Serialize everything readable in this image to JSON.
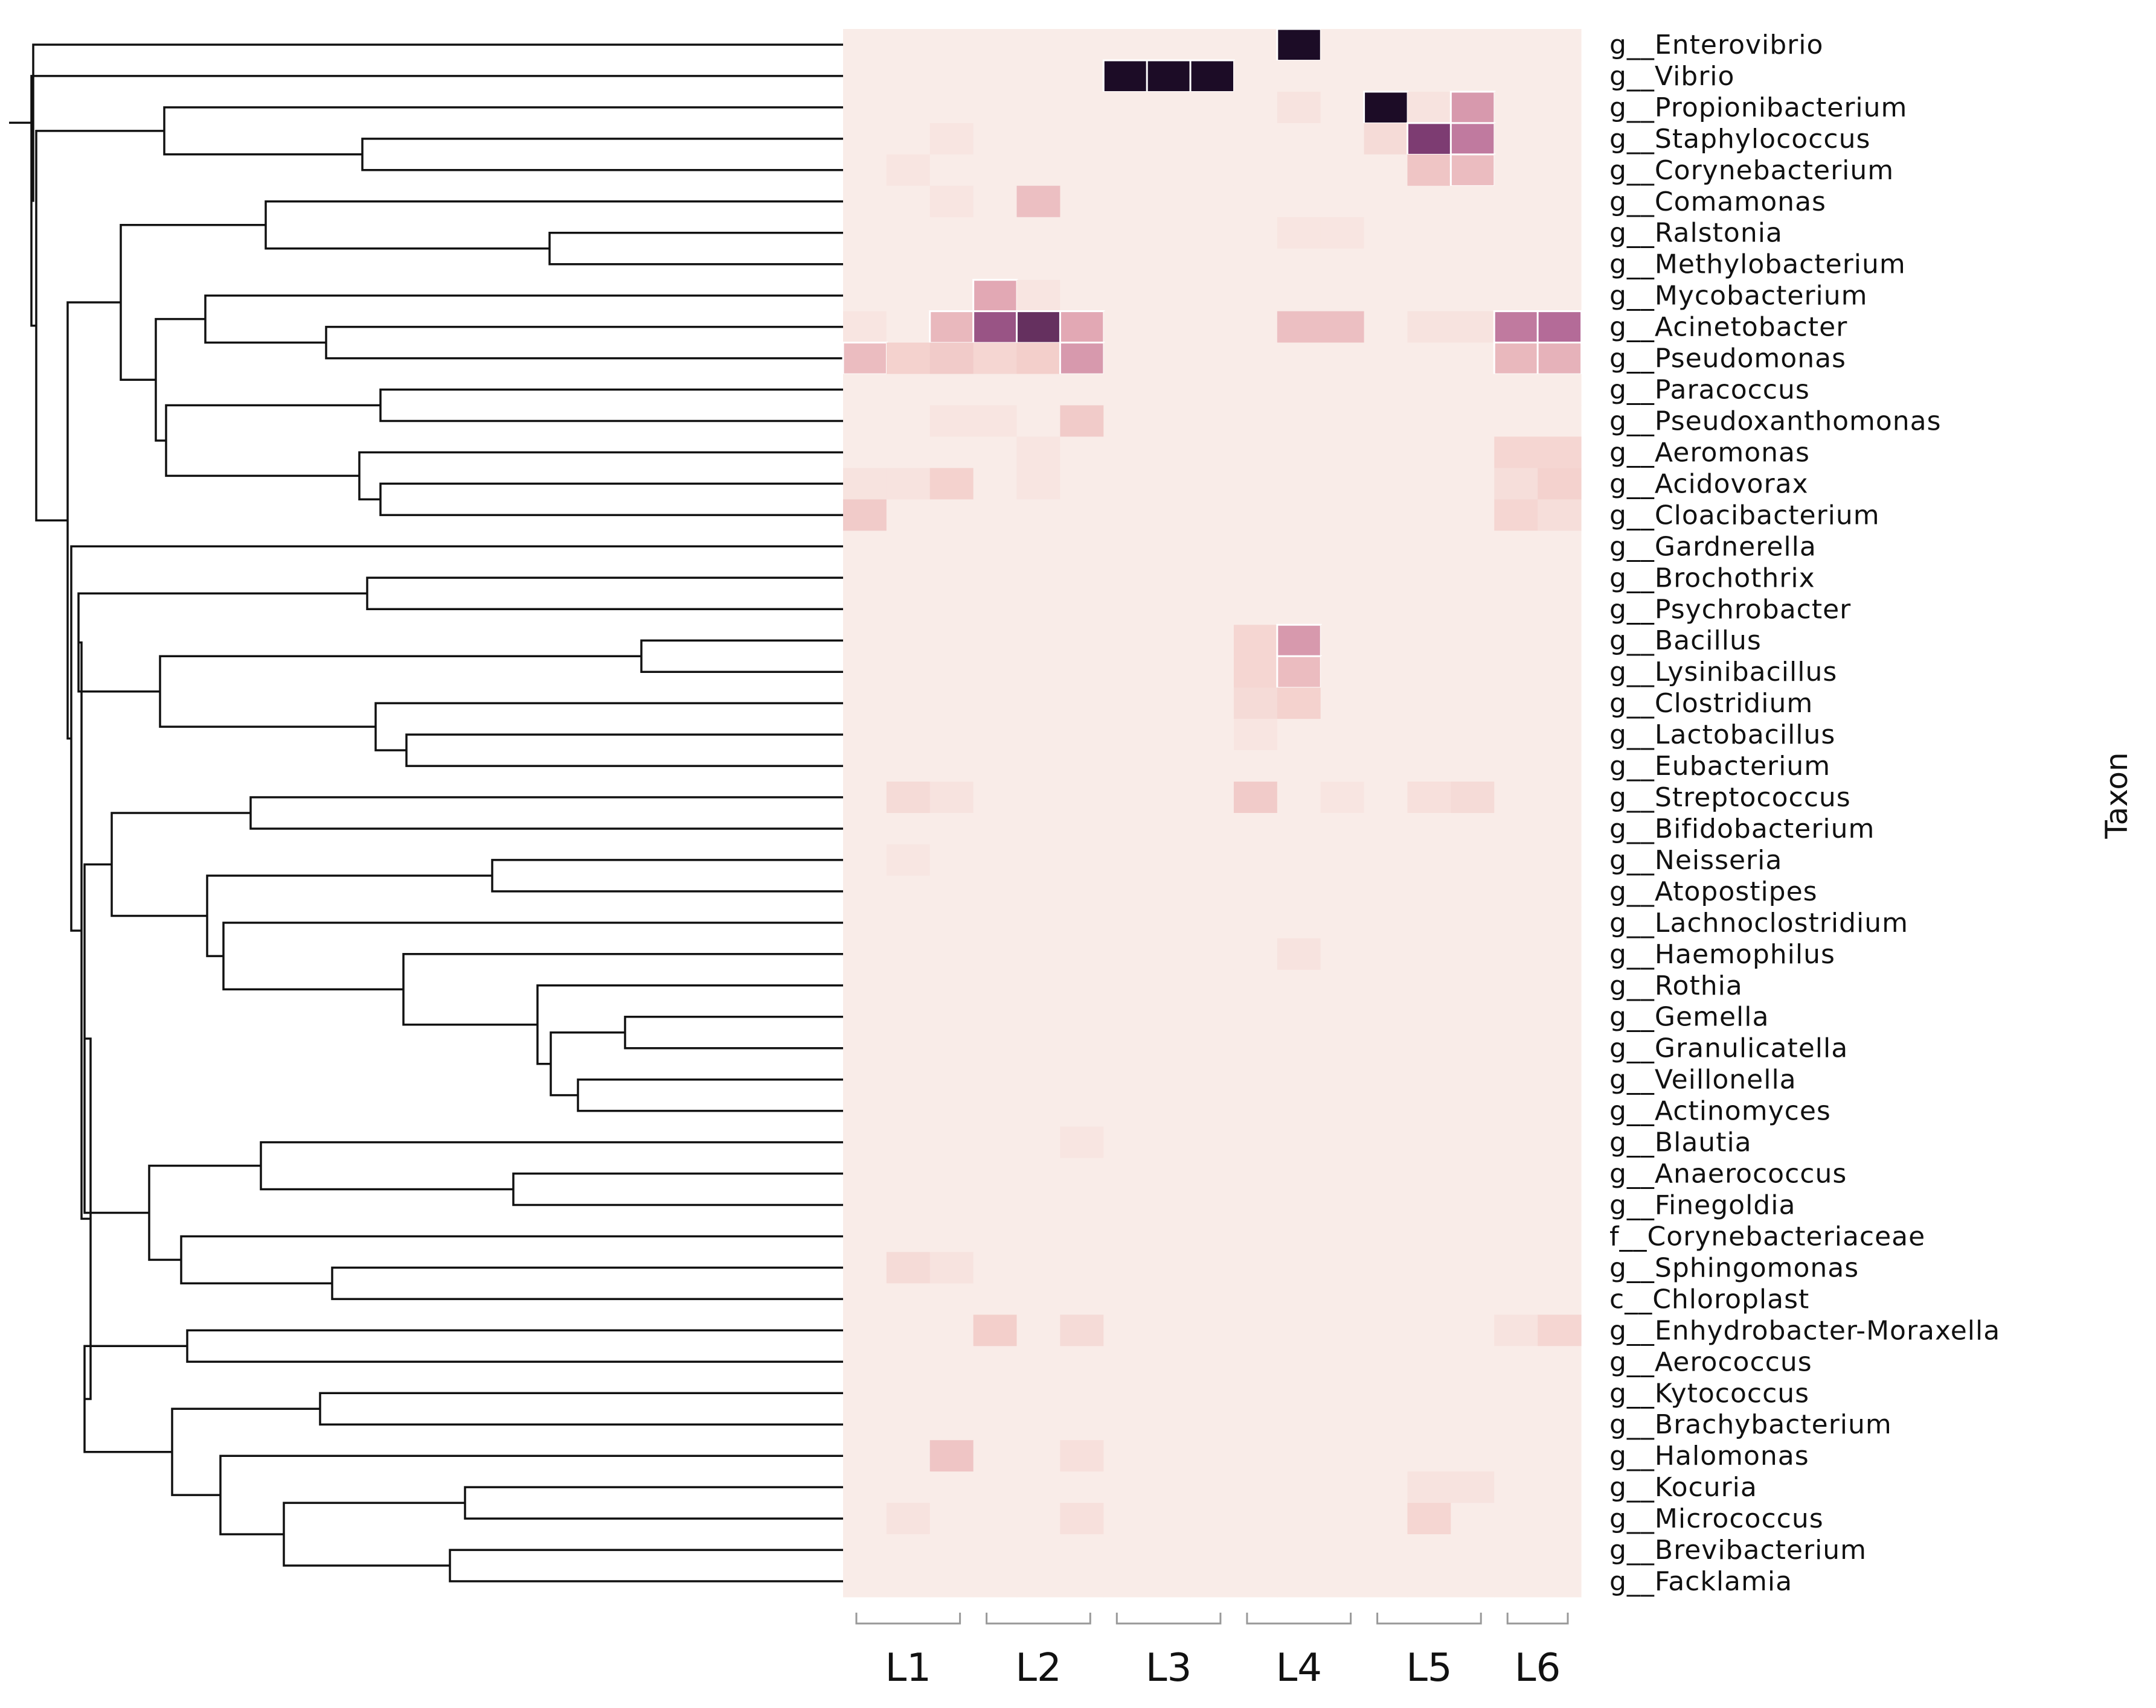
{
  "chart_data": {
    "type": "heatmap",
    "title": "",
    "xlabel": "",
    "ylabel": "Taxon",
    "colorscale": [
      "#f9ece8",
      "#f3cfcb",
      "#e2a8b4",
      "#b46b98",
      "#7d3c72",
      "#1c0c26"
    ],
    "value_range": [
      0,
      1
    ],
    "groups": [
      "L1",
      "L2",
      "L3",
      "L4",
      "L5",
      "L6"
    ],
    "group_column_counts": [
      3,
      3,
      3,
      3,
      3,
      2
    ],
    "dendrogram": "hierarchical clustering of taxa",
    "taxa": [
      "g__Enterovibrio",
      "g__Vibrio",
      "g__Propionibacterium",
      "g__Staphylococcus",
      "g__Corynebacterium",
      "g__Comamonas",
      "g__Ralstonia",
      "g__Methylobacterium",
      "g__Mycobacterium",
      "g__Acinetobacter",
      "g__Pseudomonas",
      "g__Paracoccus",
      "g__Pseudoxanthomonas",
      "g__Aeromonas",
      "g__Acidovorax",
      "g__Cloacibacterium",
      "g__Gardnerella",
      "g__Brochothrix",
      "g__Psychrobacter",
      "g__Bacillus",
      "g__Lysinibacillus",
      "g__Clostridium",
      "g__Lactobacillus",
      "g__Eubacterium",
      "g__Streptococcus",
      "g__Bifidobacterium",
      "g__Neisseria",
      "g__Atopostipes",
      "g__Lachnoclostridium",
      "g__Haemophilus",
      "g__Rothia",
      "g__Gemella",
      "g__Granulicatella",
      "g__Veillonella",
      "g__Actinomyces",
      "g__Blautia",
      "g__Anaerococcus",
      "g__Finegoldia",
      "f__Corynebacteriaceae",
      "g__Sphingomonas",
      "c__Chloroplast",
      "g__Enhydrobacter-Moraxella",
      "g__Aerococcus",
      "g__Kytococcus",
      "g__Brachybacterium",
      "g__Halomonas",
      "g__Kocuria",
      "g__Micrococcus",
      "g__Brevibacterium",
      "g__Facklamia"
    ],
    "cells": [
      {
        "taxon": 0,
        "sample": 10,
        "value": 1.0
      },
      {
        "taxon": 1,
        "sample": 6,
        "value": 1.0
      },
      {
        "taxon": 1,
        "sample": 7,
        "value": 1.0
      },
      {
        "taxon": 1,
        "sample": 8,
        "value": 1.0
      },
      {
        "taxon": 2,
        "sample": 10,
        "value": 0.06
      },
      {
        "taxon": 2,
        "sample": 12,
        "value": 1.0
      },
      {
        "taxon": 2,
        "sample": 13,
        "value": 0.06
      },
      {
        "taxon": 2,
        "sample": 14,
        "value": 0.45
      },
      {
        "taxon": 3,
        "sample": 2,
        "value": 0.05
      },
      {
        "taxon": 3,
        "sample": 12,
        "value": 0.12
      },
      {
        "taxon": 3,
        "sample": 13,
        "value": 0.8
      },
      {
        "taxon": 3,
        "sample": 14,
        "value": 0.55
      },
      {
        "taxon": 4,
        "sample": 1,
        "value": 0.05
      },
      {
        "taxon": 4,
        "sample": 13,
        "value": 0.25
      },
      {
        "taxon": 4,
        "sample": 14,
        "value": 0.3
      },
      {
        "taxon": 5,
        "sample": 2,
        "value": 0.05
      },
      {
        "taxon": 5,
        "sample": 4,
        "value": 0.28
      },
      {
        "taxon": 6,
        "sample": 10,
        "value": 0.05
      },
      {
        "taxon": 6,
        "sample": 11,
        "value": 0.05
      },
      {
        "taxon": 8,
        "sample": 3,
        "value": 0.4
      },
      {
        "taxon": 8,
        "sample": 4,
        "value": 0.05
      },
      {
        "taxon": 9,
        "sample": 0,
        "value": 0.05
      },
      {
        "taxon": 9,
        "sample": 2,
        "value": 0.32
      },
      {
        "taxon": 9,
        "sample": 3,
        "value": 0.7
      },
      {
        "taxon": 9,
        "sample": 4,
        "value": 0.85
      },
      {
        "taxon": 9,
        "sample": 5,
        "value": 0.4
      },
      {
        "taxon": 9,
        "sample": 10,
        "value": 0.28
      },
      {
        "taxon": 9,
        "sample": 11,
        "value": 0.28
      },
      {
        "taxon": 9,
        "sample": 13,
        "value": 0.06
      },
      {
        "taxon": 9,
        "sample": 14,
        "value": 0.06
      },
      {
        "taxon": 9,
        "sample": 15,
        "value": 0.55
      },
      {
        "taxon": 9,
        "sample": 16,
        "value": 0.6
      },
      {
        "taxon": 10,
        "sample": 0,
        "value": 0.3
      },
      {
        "taxon": 10,
        "sample": 1,
        "value": 0.18
      },
      {
        "taxon": 10,
        "sample": 2,
        "value": 0.22
      },
      {
        "taxon": 10,
        "sample": 3,
        "value": 0.15
      },
      {
        "taxon": 10,
        "sample": 4,
        "value": 0.2
      },
      {
        "taxon": 10,
        "sample": 5,
        "value": 0.45
      },
      {
        "taxon": 10,
        "sample": 15,
        "value": 0.32
      },
      {
        "taxon": 10,
        "sample": 16,
        "value": 0.35
      },
      {
        "taxon": 12,
        "sample": 2,
        "value": 0.05
      },
      {
        "taxon": 12,
        "sample": 3,
        "value": 0.05
      },
      {
        "taxon": 12,
        "sample": 5,
        "value": 0.22
      },
      {
        "taxon": 13,
        "sample": 4,
        "value": 0.05
      },
      {
        "taxon": 13,
        "sample": 15,
        "value": 0.15
      },
      {
        "taxon": 13,
        "sample": 16,
        "value": 0.15
      },
      {
        "taxon": 14,
        "sample": 0,
        "value": 0.06
      },
      {
        "taxon": 14,
        "sample": 1,
        "value": 0.06
      },
      {
        "taxon": 14,
        "sample": 2,
        "value": 0.18
      },
      {
        "taxon": 14,
        "sample": 4,
        "value": 0.05
      },
      {
        "taxon": 14,
        "sample": 15,
        "value": 0.1
      },
      {
        "taxon": 14,
        "sample": 16,
        "value": 0.18
      },
      {
        "taxon": 15,
        "sample": 0,
        "value": 0.22
      },
      {
        "taxon": 15,
        "sample": 15,
        "value": 0.15
      },
      {
        "taxon": 15,
        "sample": 16,
        "value": 0.1
      },
      {
        "taxon": 19,
        "sample": 9,
        "value": 0.15
      },
      {
        "taxon": 19,
        "sample": 10,
        "value": 0.45
      },
      {
        "taxon": 20,
        "sample": 9,
        "value": 0.15
      },
      {
        "taxon": 20,
        "sample": 10,
        "value": 0.3
      },
      {
        "taxon": 21,
        "sample": 9,
        "value": 0.12
      },
      {
        "taxon": 21,
        "sample": 10,
        "value": 0.18
      },
      {
        "taxon": 22,
        "sample": 9,
        "value": 0.05
      },
      {
        "taxon": 24,
        "sample": 1,
        "value": 0.12
      },
      {
        "taxon": 24,
        "sample": 2,
        "value": 0.06
      },
      {
        "taxon": 24,
        "sample": 9,
        "value": 0.22
      },
      {
        "taxon": 24,
        "sample": 11,
        "value": 0.05
      },
      {
        "taxon": 24,
        "sample": 13,
        "value": 0.08
      },
      {
        "taxon": 24,
        "sample": 14,
        "value": 0.12
      },
      {
        "taxon": 26,
        "sample": 1,
        "value": 0.04
      },
      {
        "taxon": 29,
        "sample": 10,
        "value": 0.06
      },
      {
        "taxon": 35,
        "sample": 5,
        "value": 0.05
      },
      {
        "taxon": 39,
        "sample": 1,
        "value": 0.12
      },
      {
        "taxon": 39,
        "sample": 2,
        "value": 0.06
      },
      {
        "taxon": 41,
        "sample": 3,
        "value": 0.2
      },
      {
        "taxon": 41,
        "sample": 5,
        "value": 0.12
      },
      {
        "taxon": 41,
        "sample": 15,
        "value": 0.06
      },
      {
        "taxon": 41,
        "sample": 16,
        "value": 0.15
      },
      {
        "taxon": 45,
        "sample": 2,
        "value": 0.25
      },
      {
        "taxon": 45,
        "sample": 5,
        "value": 0.08
      },
      {
        "taxon": 46,
        "sample": 13,
        "value": 0.06
      },
      {
        "taxon": 46,
        "sample": 14,
        "value": 0.06
      },
      {
        "taxon": 47,
        "sample": 1,
        "value": 0.06
      },
      {
        "taxon": 47,
        "sample": 5,
        "value": 0.08
      },
      {
        "taxon": 47,
        "sample": 13,
        "value": 0.15
      }
    ]
  }
}
